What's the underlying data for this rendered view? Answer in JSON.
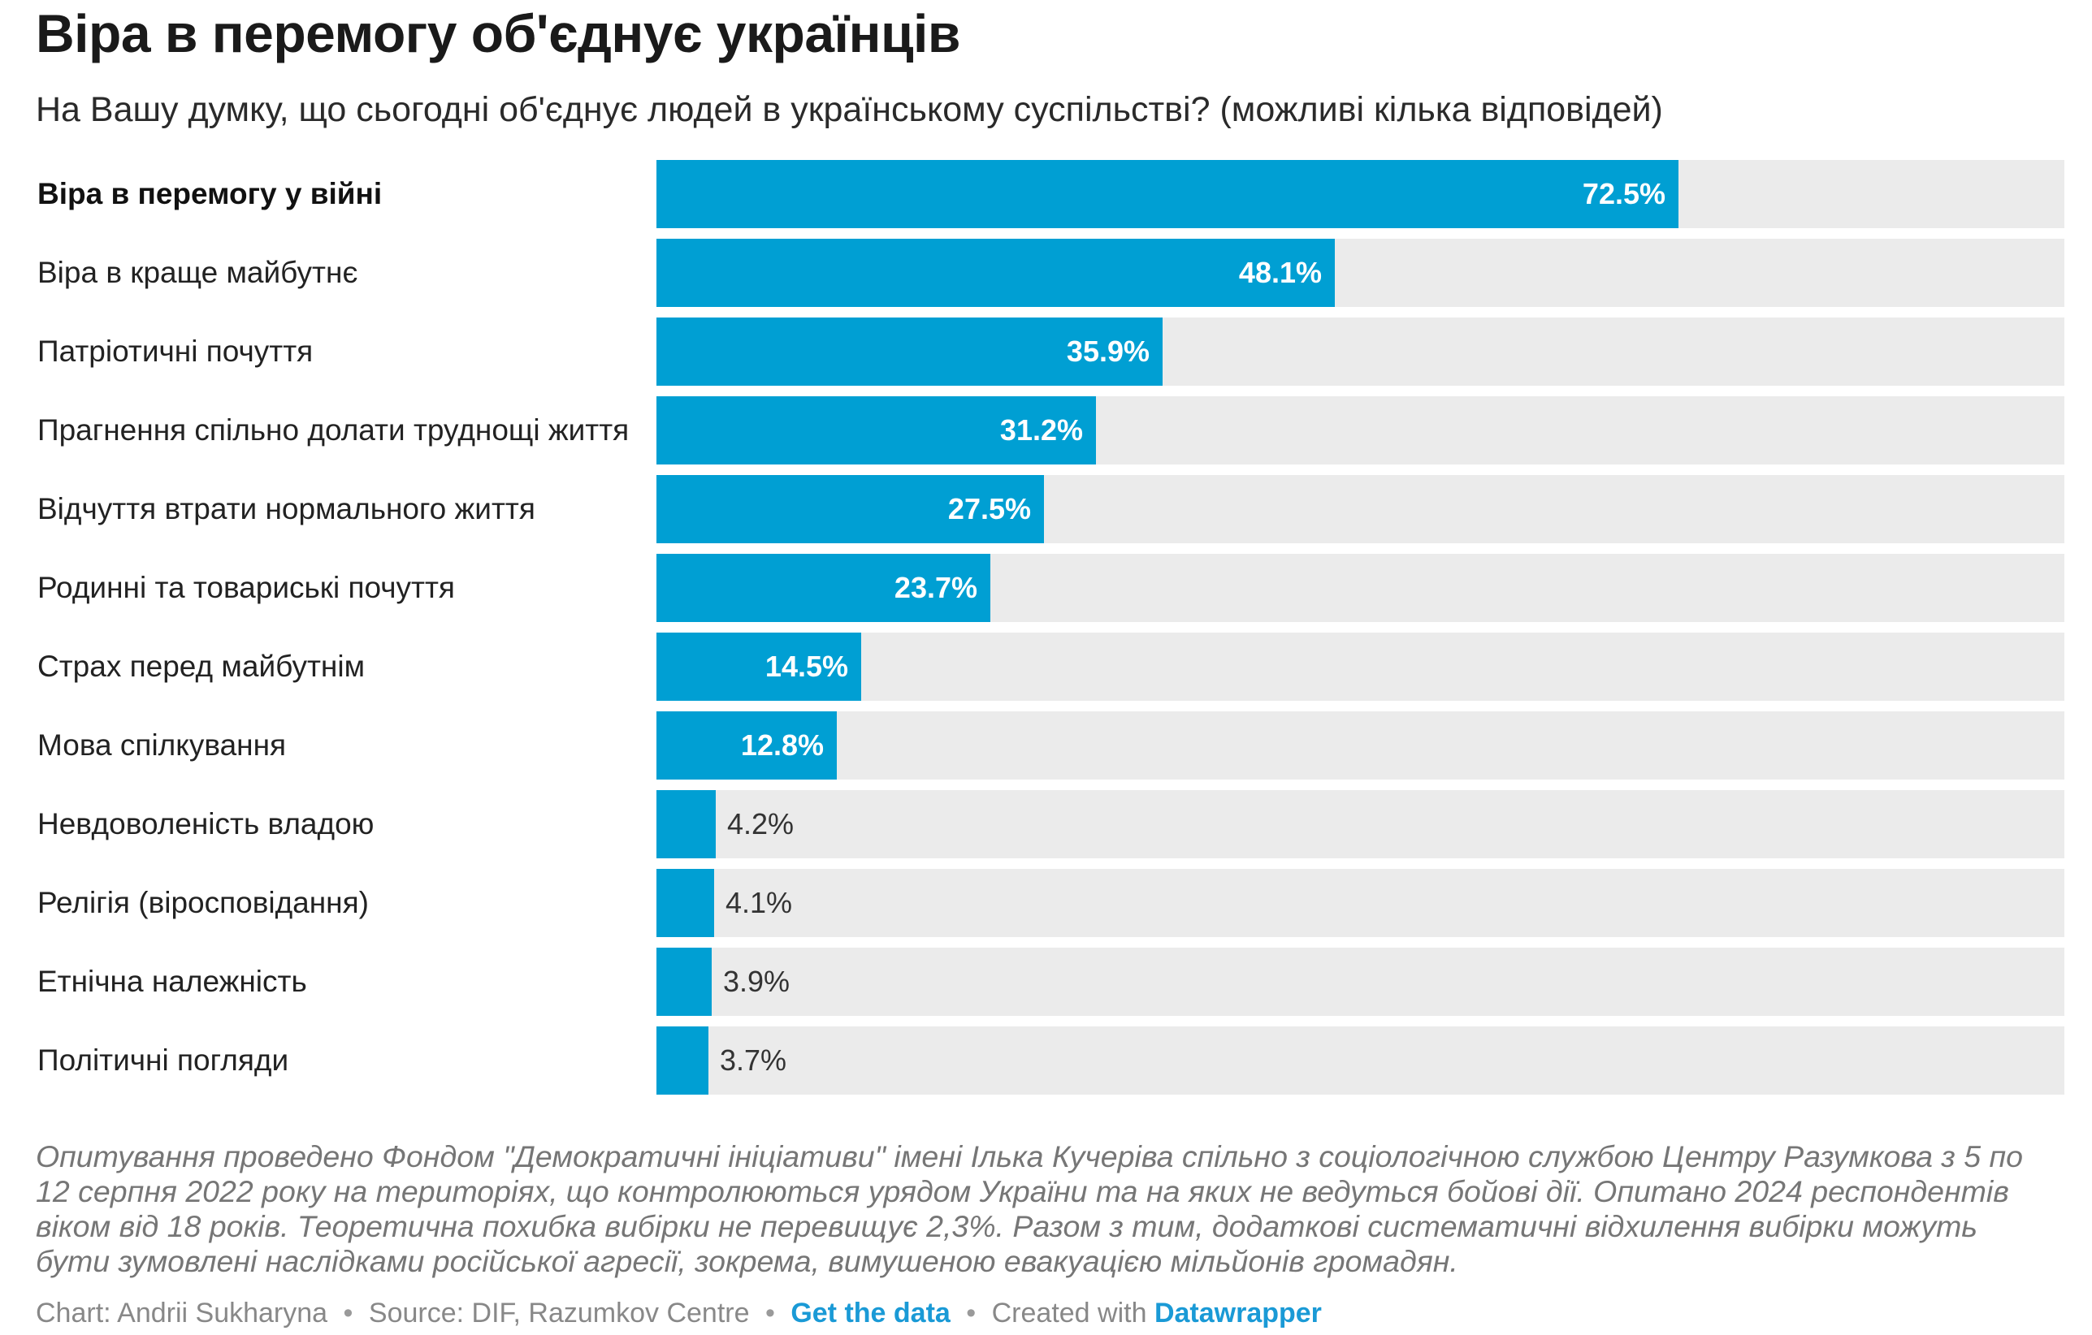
{
  "title": "Віра в перемогу об'єднує українців",
  "subtitle": "На Вашу думку, що сьогодні об'єднує людей в українському суспільстві? (можливі кілька відповідей)",
  "chart_data": {
    "type": "bar",
    "orientation": "horizontal",
    "categories": [
      "Віра в перемогу у війні",
      "Віра в краще майбутнє",
      "Патріотичні почуття",
      "Прагнення спільно долати труднощі життя",
      "Відчуття втрати нормального життя",
      "Родинні та товариські почуття",
      "Страх перед майбутнім",
      "Мова спілкування",
      "Невдоволеність владою",
      "Релігія (віросповідання)",
      "Етнічна належність",
      "Політичні погляди"
    ],
    "values": [
      72.5,
      48.1,
      35.9,
      31.2,
      27.5,
      23.7,
      14.5,
      12.8,
      4.2,
      4.1,
      3.9,
      3.7
    ],
    "value_labels": [
      "72.5%",
      "48.1%",
      "35.9%",
      "31.2%",
      "27.5%",
      "23.7%",
      "14.5%",
      "12.8%",
      "4.2%",
      "4.1%",
      "3.9%",
      "3.7%"
    ],
    "xlim": [
      0,
      100
    ],
    "unit": "%",
    "bar_color": "#009fd3",
    "track_color": "#ebebeb",
    "highlight_first_label": true
  },
  "notes": "Опитування проведено Фондом \"Демократичні ініціативи\" імені Ілька Кучеріва спільно з соціологічною службою Центру Разумкова з 5 по 12 серпня 2022 року на територіях, що контролюються урядом України та на яких не ведуться бойові дії. Опитано 2024 респондентів віком від 18 років. Теоретична похибка вибірки не перевищує 2,3%. Разом з тим, додаткові систематичні відхилення вибірки можуть бути зумовлені наслідками російської агресії, зокрема, вимушеною евакуацією мільйонів громадян.",
  "footer": {
    "chart_credit": "Chart: Andrii Sukharyna",
    "source": "Source: DIF, Razumkov Centre",
    "get_data_label": "Get the data",
    "created_with": "Created with",
    "datawrapper_label": "Datawrapper",
    "separator": "•",
    "link_color": "#1a9ad6"
  }
}
